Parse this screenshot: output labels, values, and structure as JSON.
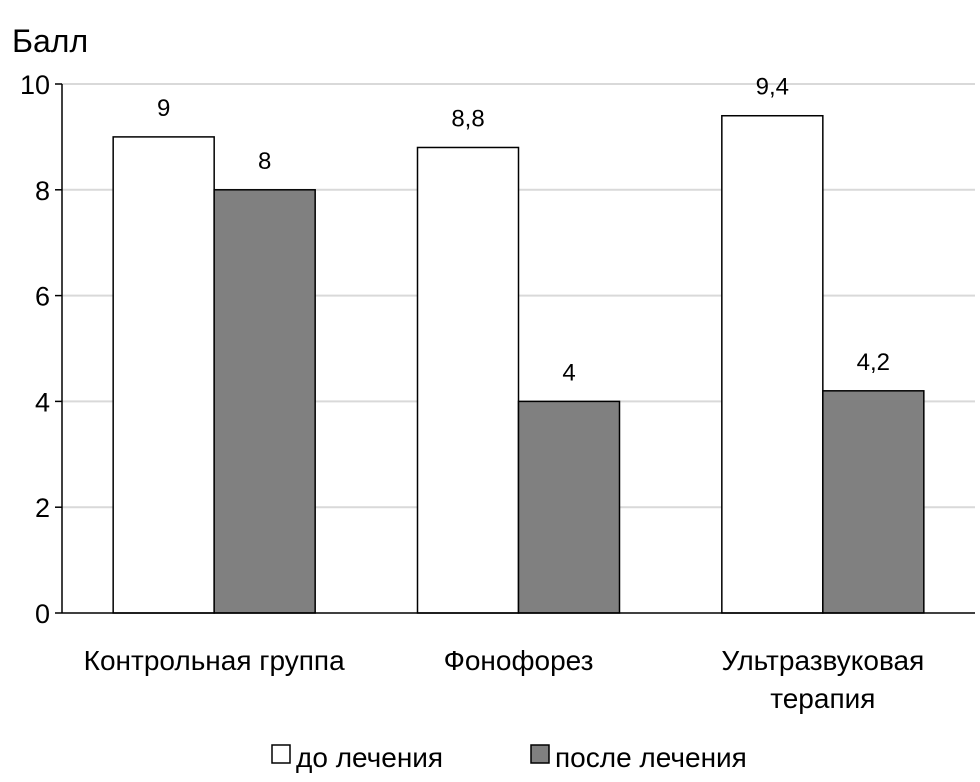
{
  "chart_data": {
    "type": "bar",
    "ylabel": "Балл",
    "xlabel": "",
    "ylim": [
      0,
      10
    ],
    "yticks": [
      0,
      2,
      4,
      6,
      8,
      10
    ],
    "grid": true,
    "legend_position": "bottom",
    "categories": [
      [
        "Контрольная группа"
      ],
      [
        "Фонофорез"
      ],
      [
        "Ультразвуковая",
        "терапия"
      ]
    ],
    "series": [
      {
        "name": "до лечения",
        "values": [
          9,
          8.8,
          9.4
        ],
        "labels": [
          "9",
          "8,8",
          "9,4"
        ],
        "color": "#ffffff"
      },
      {
        "name": "после лечения",
        "values": [
          8,
          4,
          4.2
        ],
        "labels": [
          "8",
          "4",
          "4,2"
        ],
        "color": "#808080"
      }
    ]
  }
}
